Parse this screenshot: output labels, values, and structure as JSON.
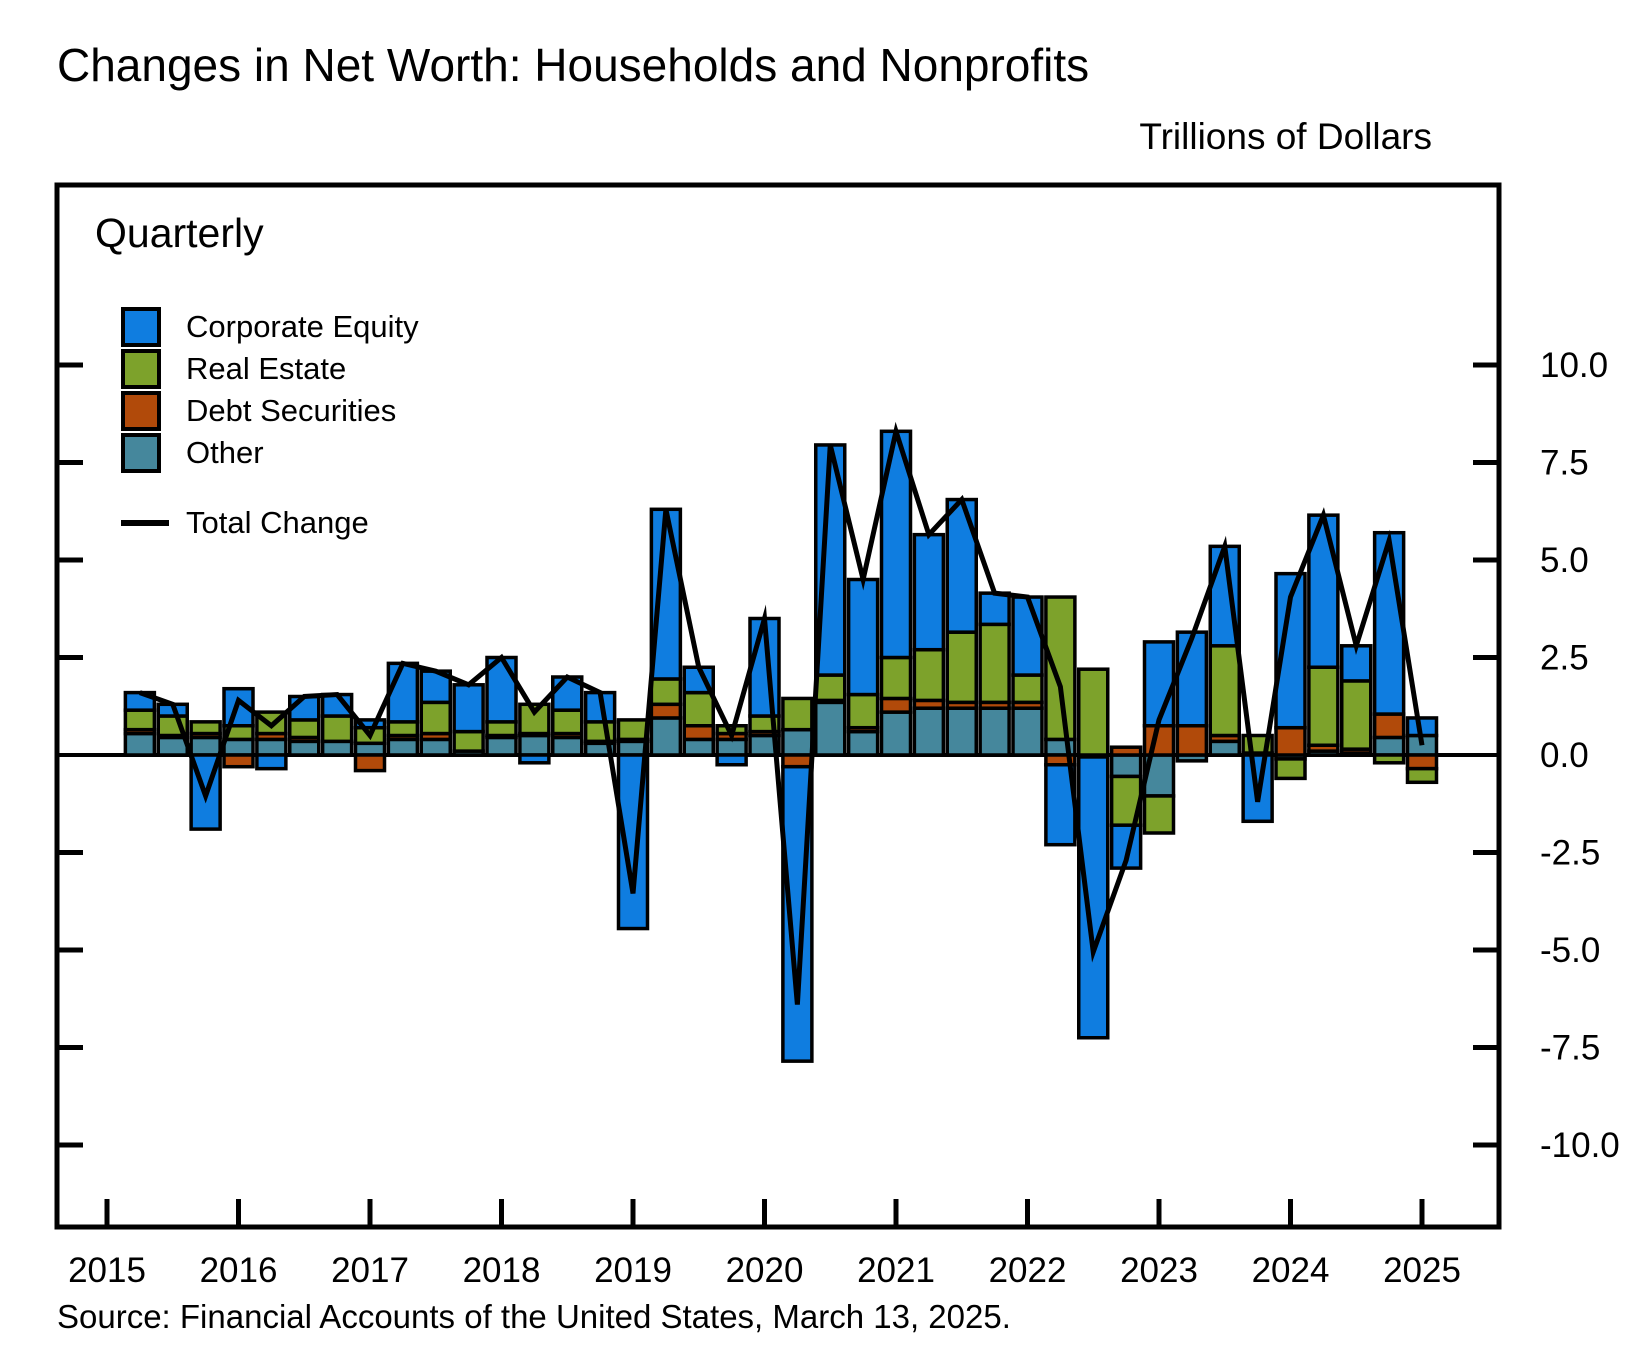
{
  "title": "Changes in Net Worth: Households and Nonprofits",
  "units_label": "Trillions of Dollars",
  "frequency_label": "Quarterly",
  "source_note": "Source: Financial Accounts of the United States, March 13, 2025.",
  "colors": {
    "corporate_equity": "#0f7de0",
    "real_estate": "#7da22b",
    "debt_securities": "#b14a0a",
    "other": "#45879c",
    "line": "#000000",
    "outline": "#000000",
    "background": "#ffffff"
  },
  "legend": {
    "items": [
      {
        "label": "Corporate Equity",
        "color_key": "corporate_equity"
      },
      {
        "label": "Real Estate",
        "color_key": "real_estate"
      },
      {
        "label": "Debt Securities",
        "color_key": "debt_securities"
      },
      {
        "label": "Other",
        "color_key": "other"
      }
    ],
    "line_label": "Total Change"
  },
  "chart_data": {
    "type": "bar",
    "subtype": "stacked-bars-with-total-line",
    "title": "Changes in Net Worth: Households and Nonprofits",
    "ylabel": "Trillions of Dollars",
    "xlabel": "",
    "grid": false,
    "legend_position": "upper-left-inside",
    "x_tick_labels": [
      "2015",
      "2016",
      "2017",
      "2018",
      "2019",
      "2020",
      "2021",
      "2022",
      "2023",
      "2024",
      "2025"
    ],
    "y_tick_labels": [
      "10.0",
      "7.5",
      "5.0",
      "2.5",
      "0.0",
      "-2.5",
      "-5.0",
      "-7.5",
      "-10.0"
    ],
    "y_tick_values": [
      10.0,
      7.5,
      5.0,
      2.5,
      0.0,
      -2.5,
      -5.0,
      -7.5,
      -10.0
    ],
    "ylim": [
      -12.0,
      14.6
    ],
    "quarters": [
      "2015Q1",
      "2015Q2",
      "2015Q3",
      "2015Q4",
      "2016Q1",
      "2016Q2",
      "2016Q3",
      "2016Q4",
      "2017Q1",
      "2017Q2",
      "2017Q3",
      "2017Q4",
      "2018Q1",
      "2018Q2",
      "2018Q3",
      "2018Q4",
      "2019Q1",
      "2019Q2",
      "2019Q3",
      "2019Q4",
      "2020Q1",
      "2020Q2",
      "2020Q3",
      "2020Q4",
      "2021Q1",
      "2021Q2",
      "2021Q3",
      "2021Q4",
      "2022Q1",
      "2022Q2",
      "2022Q3",
      "2022Q4",
      "2023Q1",
      "2023Q2",
      "2023Q3",
      "2023Q4",
      "2024Q1",
      "2024Q2",
      "2024Q3",
      "2024Q4"
    ],
    "series": [
      {
        "name": "Corporate Equity",
        "color_key": "corporate_equity",
        "values": [
          0.45,
          0.3,
          -1.9,
          0.95,
          -0.35,
          0.6,
          0.55,
          0.2,
          1.5,
          0.8,
          1.2,
          1.65,
          -0.2,
          0.85,
          0.75,
          -4.45,
          4.35,
          0.65,
          -0.25,
          2.5,
          -7.55,
          5.9,
          2.95,
          5.8,
          2.95,
          3.4,
          0.8,
          2.0,
          -2.05,
          -7.2,
          -1.1,
          2.15,
          2.4,
          2.55,
          -1.7,
          3.95,
          3.9,
          0.9,
          4.65,
          0.45
        ]
      },
      {
        "name": "Real Estate",
        "color_key": "real_estate",
        "values": [
          0.5,
          0.5,
          0.3,
          0.35,
          0.55,
          0.45,
          0.65,
          0.4,
          0.35,
          0.8,
          0.5,
          0.35,
          0.75,
          0.6,
          0.5,
          0.5,
          0.65,
          0.85,
          0.2,
          0.4,
          0.8,
          0.65,
          0.85,
          1.05,
          1.3,
          1.8,
          2.0,
          0.7,
          3.65,
          2.2,
          -1.25,
          -0.95,
          0.0,
          2.3,
          0.45,
          -0.5,
          2.0,
          1.75,
          -0.2,
          -0.35
        ]
      },
      {
        "name": "Debt Securities",
        "color_key": "debt_securities",
        "values": [
          0.1,
          0.05,
          0.1,
          -0.3,
          0.15,
          0.1,
          0.0,
          -0.4,
          0.1,
          0.15,
          0.0,
          0.05,
          0.05,
          0.1,
          0.05,
          0.05,
          0.35,
          0.35,
          0.15,
          0.1,
          -0.3,
          0.05,
          0.1,
          0.35,
          0.2,
          0.15,
          0.15,
          0.15,
          -0.25,
          0.0,
          0.2,
          0.75,
          0.75,
          0.15,
          0.0,
          0.7,
          0.15,
          0.1,
          0.6,
          -0.35
        ]
      },
      {
        "name": "Other",
        "color_key": "other",
        "values": [
          0.55,
          0.45,
          0.45,
          0.4,
          0.4,
          0.35,
          0.35,
          0.3,
          0.4,
          0.4,
          0.1,
          0.45,
          0.5,
          0.45,
          0.3,
          0.35,
          0.95,
          0.4,
          0.4,
          0.5,
          0.65,
          1.35,
          0.6,
          1.1,
          1.2,
          1.2,
          1.2,
          1.2,
          0.4,
          -0.05,
          -0.55,
          -1.05,
          -0.15,
          0.35,
          0.05,
          -0.1,
          0.1,
          0.05,
          0.45,
          0.5
        ]
      }
    ],
    "total_change": {
      "name": "Total Change",
      "values": [
        1.6,
        1.3,
        -1.05,
        1.4,
        0.75,
        1.5,
        1.55,
        0.5,
        2.35,
        2.15,
        1.8,
        2.5,
        1.1,
        2.0,
        1.6,
        -3.55,
        6.3,
        2.25,
        0.5,
        3.5,
        -6.4,
        7.95,
        4.5,
        8.3,
        5.65,
        6.55,
        4.15,
        4.05,
        1.75,
        -5.05,
        -2.7,
        0.9,
        3.0,
        5.35,
        -1.2,
        4.05,
        6.15,
        2.8,
        5.5,
        0.25
      ]
    }
  },
  "layout_note": "quarterly stacked bars, stack order from zero: Other, Debt Securities, Real Estate, Corporate Equity"
}
